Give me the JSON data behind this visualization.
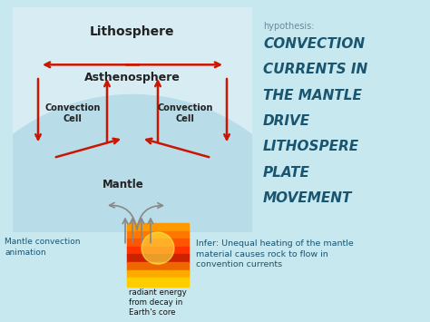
{
  "bg_color": "#c8e8f0",
  "hypothesis_label": "hypothesis:",
  "hypothesis_color": "#6a8a9a",
  "bold_text_lines": [
    "CONVECTION",
    "CURRENTS IN",
    "THE MANTLE",
    "DRIVE",
    "LITHOSPERE",
    "PLATE",
    "MOVEMENT"
  ],
  "bold_text_color": "#1a5570",
  "litho_label": "Lithosphere",
  "asthen_label": "Asthenosphere",
  "mantle_label": "Mantle",
  "conv_cell_left": "Convection\nCell",
  "conv_cell_right": "Convection\nCell",
  "bottom_left_text": "Mantle convection\nanimation",
  "bottom_center_text": "radiant energy\nfrom decay in\nEarth's core",
  "bottom_right_text": "Infer: Unequal heating of the mantle\nmaterial causes rock to flow in\nconvention currents",
  "bottom_text_color": "#1a5570",
  "orange_tri_color": "#e06020",
  "teal_bottom_color": "#50b8cc",
  "arrow_color": "#cc1500",
  "gray_arrow_color": "#888888"
}
